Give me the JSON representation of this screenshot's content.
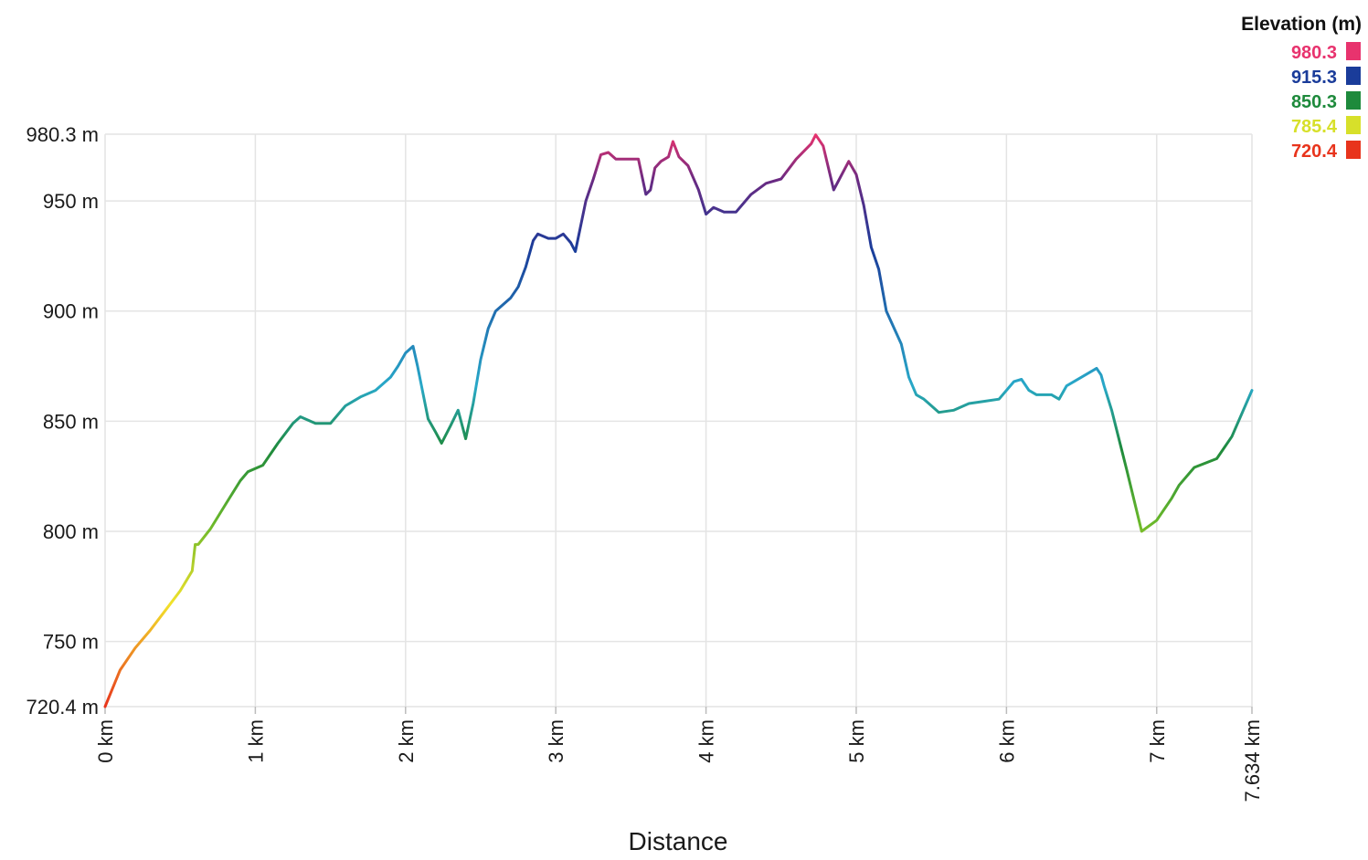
{
  "chart_data": {
    "type": "line",
    "xlabel": "Distance",
    "ylabel": "",
    "xlim": [
      0,
      7.634
    ],
    "ylim": [
      720.4,
      980.3
    ],
    "grid": true,
    "x_ticks": [
      {
        "value": 0,
        "label": "0 km"
      },
      {
        "value": 1,
        "label": "1 km"
      },
      {
        "value": 2,
        "label": "2 km"
      },
      {
        "value": 3,
        "label": "3 km"
      },
      {
        "value": 4,
        "label": "4 km"
      },
      {
        "value": 5,
        "label": "5 km"
      },
      {
        "value": 6,
        "label": "6 km"
      },
      {
        "value": 7,
        "label": "7 km"
      },
      {
        "value": 7.634,
        "label": "7.634 km"
      }
    ],
    "y_ticks": [
      {
        "value": 720.4,
        "label": "720.4 m"
      },
      {
        "value": 750,
        "label": "750 m"
      },
      {
        "value": 800,
        "label": "800 m"
      },
      {
        "value": 850,
        "label": "850 m"
      },
      {
        "value": 900,
        "label": "900 m"
      },
      {
        "value": 950,
        "label": "950 m"
      },
      {
        "value": 980.3,
        "label": "980.3 m"
      }
    ],
    "legend": {
      "title": "Elevation (m)",
      "position": "top-right",
      "entries": [
        {
          "label": "980.3",
          "value": 980.3,
          "color": "#e8336e"
        },
        {
          "label": "915.3",
          "value": 915.3,
          "color": "#1a3c9a"
        },
        {
          "label": "850.3",
          "value": 850.3,
          "color": "#1e8a3c"
        },
        {
          "label": "785.4",
          "value": 785.4,
          "color": "#d7e02a"
        },
        {
          "label": "720.4",
          "value": 720.4,
          "color": "#e8341c"
        }
      ]
    },
    "series": [
      {
        "x": [
          0,
          0.1,
          0.2,
          0.3,
          0.4,
          0.5,
          0.58,
          0.6,
          0.62,
          0.7,
          0.8,
          0.9,
          0.95,
          1.05,
          1.15,
          1.25,
          1.3,
          1.4,
          1.5,
          1.6,
          1.7,
          1.8,
          1.9,
          1.95,
          2.0,
          2.05,
          2.08,
          2.15,
          2.2,
          2.24,
          2.3,
          2.35,
          2.4,
          2.45,
          2.5,
          2.55,
          2.6,
          2.7,
          2.75,
          2.8,
          2.85,
          2.88,
          2.95,
          3.0,
          3.05,
          3.1,
          3.13,
          3.2,
          3.25,
          3.3,
          3.35,
          3.4,
          3.5,
          3.55,
          3.6,
          3.63,
          3.66,
          3.7,
          3.75,
          3.78,
          3.82,
          3.88,
          3.95,
          4.0,
          4.05,
          4.12,
          4.2,
          4.3,
          4.4,
          4.5,
          4.6,
          4.7,
          4.73,
          4.78,
          4.85,
          4.95,
          5.0,
          5.05,
          5.1,
          5.15,
          5.2,
          5.3,
          5.35,
          5.4,
          5.45,
          5.55,
          5.65,
          5.75,
          5.85,
          5.95,
          6.05,
          6.1,
          6.15,
          6.2,
          6.3,
          6.35,
          6.4,
          6.5,
          6.6,
          6.63,
          6.65,
          6.7,
          6.8,
          6.9,
          7.0,
          7.1,
          7.15,
          7.25,
          7.4,
          7.5,
          7.634
        ],
        "values": [
          720.4,
          737,
          747,
          755,
          764,
          773,
          782,
          794,
          794,
          801,
          812,
          823,
          827,
          830,
          840,
          849,
          852,
          849,
          849,
          857,
          861,
          864,
          870,
          875,
          881,
          884,
          875,
          851,
          845,
          840,
          848,
          855,
          842,
          858,
          878,
          892,
          900,
          906,
          911,
          920,
          932,
          935,
          933,
          933,
          935,
          931,
          927,
          950,
          960,
          971,
          972,
          969,
          969,
          969,
          953,
          955,
          965,
          968,
          970,
          977,
          970,
          966,
          955,
          944,
          947,
          945,
          945,
          953,
          958,
          960,
          969,
          976,
          980,
          975,
          955,
          968,
          962,
          948,
          929,
          919,
          900,
          885,
          870,
          862,
          860,
          854,
          855,
          858,
          859,
          860,
          868,
          869,
          864,
          862,
          862,
          860,
          866,
          870,
          874,
          871,
          866,
          855,
          828,
          800,
          805,
          815,
          821,
          829,
          833,
          843,
          864
        ]
      }
    ]
  }
}
